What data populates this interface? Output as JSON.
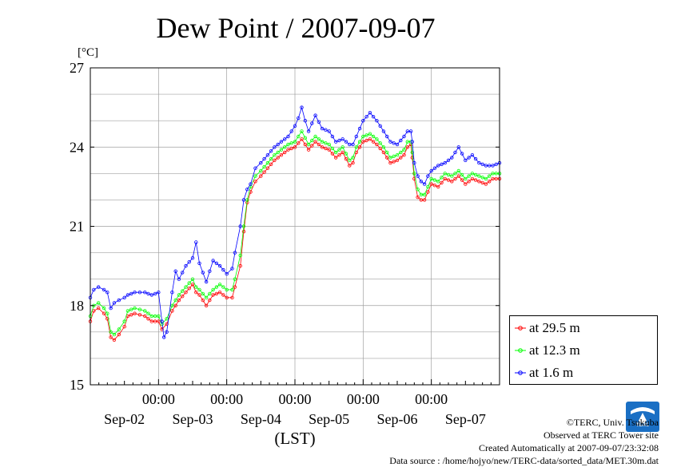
{
  "title": "Dew Point / 2007-09-07",
  "chart_data": {
    "type": "line",
    "title": "Dew Point / 2007-09-07",
    "ylabel": "[°C]",
    "xlabel": "(LST)",
    "ylim": [
      15,
      27
    ],
    "yticks": [
      "15",
      "18",
      "21",
      "24",
      "27"
    ],
    "xlim": [
      0,
      6
    ],
    "x_time_labels": [
      "00:00",
      "00:00",
      "00:00",
      "00:00",
      "00:00"
    ],
    "x_date_labels": [
      "Sep-02",
      "Sep-03",
      "Sep-04",
      "Sep-05",
      "Sep-06",
      "Sep-07"
    ],
    "grid": true,
    "legend_position": "right, below plot top",
    "series": [
      {
        "name": "at 29.5 m",
        "color": "#ff0000",
        "points": [
          [
            0,
            17.4
          ],
          [
            0.05,
            17.8
          ],
          [
            0.12,
            17.9
          ],
          [
            0.2,
            17.7
          ],
          [
            0.25,
            17.5
          ],
          [
            0.3,
            16.8
          ],
          [
            0.35,
            16.7
          ],
          [
            0.42,
            16.9
          ],
          [
            0.5,
            17.2
          ],
          [
            0.55,
            17.6
          ],
          [
            0.65,
            17.7
          ],
          [
            0.8,
            17.6
          ],
          [
            0.9,
            17.4
          ],
          [
            1.0,
            17.4
          ],
          [
            1.05,
            17.1
          ],
          [
            1.12,
            17.3
          ],
          [
            1.2,
            17.8
          ],
          [
            1.3,
            18.2
          ],
          [
            1.4,
            18.5
          ],
          [
            1.5,
            18.8
          ],
          [
            1.55,
            18.5
          ],
          [
            1.6,
            18.4
          ],
          [
            1.7,
            18.0
          ],
          [
            1.8,
            18.4
          ],
          [
            1.9,
            18.5
          ],
          [
            2.0,
            18.3
          ],
          [
            2.08,
            18.3
          ],
          [
            2.12,
            18.7
          ],
          [
            2.2,
            19.5
          ],
          [
            2.25,
            20.8
          ],
          [
            2.3,
            21.9
          ],
          [
            2.35,
            22.3
          ],
          [
            2.42,
            22.7
          ],
          [
            2.5,
            22.9
          ],
          [
            2.6,
            23.2
          ],
          [
            2.7,
            23.5
          ],
          [
            2.8,
            23.7
          ],
          [
            2.9,
            23.9
          ],
          [
            3.0,
            24.0
          ],
          [
            3.1,
            24.3
          ],
          [
            3.2,
            23.9
          ],
          [
            3.3,
            24.2
          ],
          [
            3.4,
            24.0
          ],
          [
            3.5,
            23.9
          ],
          [
            3.6,
            23.6
          ],
          [
            3.7,
            23.8
          ],
          [
            3.8,
            23.3
          ],
          [
            3.85,
            23.4
          ],
          [
            3.9,
            23.8
          ],
          [
            4.0,
            24.2
          ],
          [
            4.1,
            24.3
          ],
          [
            4.2,
            24.1
          ],
          [
            4.3,
            23.8
          ],
          [
            4.4,
            23.4
          ],
          [
            4.5,
            23.5
          ],
          [
            4.6,
            23.7
          ],
          [
            4.65,
            24.0
          ],
          [
            4.7,
            24.1
          ],
          [
            4.72,
            23.6
          ],
          [
            4.75,
            22.8
          ],
          [
            4.8,
            22.1
          ],
          [
            4.85,
            22.0
          ],
          [
            4.9,
            22.0
          ],
          [
            4.95,
            22.3
          ],
          [
            5.0,
            22.6
          ],
          [
            5.1,
            22.5
          ],
          [
            5.2,
            22.8
          ],
          [
            5.3,
            22.7
          ],
          [
            5.4,
            22.9
          ],
          [
            5.5,
            22.6
          ],
          [
            5.6,
            22.8
          ],
          [
            5.7,
            22.7
          ],
          [
            5.8,
            22.6
          ],
          [
            5.9,
            22.8
          ],
          [
            6.0,
            22.8
          ]
        ]
      },
      {
        "name": "at 12.3 m",
        "color": "#00ff00",
        "points": [
          [
            0,
            17.6
          ],
          [
            0.05,
            18.0
          ],
          [
            0.12,
            18.1
          ],
          [
            0.2,
            17.9
          ],
          [
            0.25,
            17.7
          ],
          [
            0.3,
            17.0
          ],
          [
            0.35,
            16.9
          ],
          [
            0.42,
            17.1
          ],
          [
            0.5,
            17.4
          ],
          [
            0.55,
            17.8
          ],
          [
            0.65,
            17.9
          ],
          [
            0.8,
            17.8
          ],
          [
            0.9,
            17.6
          ],
          [
            1.0,
            17.6
          ],
          [
            1.05,
            17.3
          ],
          [
            1.12,
            17.5
          ],
          [
            1.2,
            18.0
          ],
          [
            1.3,
            18.4
          ],
          [
            1.4,
            18.7
          ],
          [
            1.5,
            19.0
          ],
          [
            1.55,
            18.7
          ],
          [
            1.6,
            18.6
          ],
          [
            1.7,
            18.3
          ],
          [
            1.8,
            18.6
          ],
          [
            1.9,
            18.8
          ],
          [
            2.0,
            18.6
          ],
          [
            2.08,
            18.6
          ],
          [
            2.12,
            19.0
          ],
          [
            2.2,
            19.9
          ],
          [
            2.25,
            21.0
          ],
          [
            2.3,
            22.0
          ],
          [
            2.35,
            22.5
          ],
          [
            2.42,
            22.9
          ],
          [
            2.5,
            23.1
          ],
          [
            2.6,
            23.4
          ],
          [
            2.7,
            23.7
          ],
          [
            2.8,
            23.9
          ],
          [
            2.9,
            24.1
          ],
          [
            3.0,
            24.2
          ],
          [
            3.1,
            24.6
          ],
          [
            3.2,
            24.1
          ],
          [
            3.3,
            24.4
          ],
          [
            3.4,
            24.2
          ],
          [
            3.5,
            24.1
          ],
          [
            3.6,
            23.8
          ],
          [
            3.7,
            24.0
          ],
          [
            3.8,
            23.5
          ],
          [
            3.85,
            23.6
          ],
          [
            3.9,
            24.0
          ],
          [
            4.0,
            24.4
          ],
          [
            4.1,
            24.5
          ],
          [
            4.2,
            24.3
          ],
          [
            4.3,
            24.0
          ],
          [
            4.4,
            23.6
          ],
          [
            4.5,
            23.7
          ],
          [
            4.6,
            23.9
          ],
          [
            4.65,
            24.2
          ],
          [
            4.7,
            24.2
          ],
          [
            4.72,
            23.8
          ],
          [
            4.75,
            23.0
          ],
          [
            4.8,
            22.4
          ],
          [
            4.85,
            22.2
          ],
          [
            4.9,
            22.2
          ],
          [
            4.95,
            22.5
          ],
          [
            5.0,
            22.8
          ],
          [
            5.1,
            22.7
          ],
          [
            5.2,
            23.0
          ],
          [
            5.3,
            22.9
          ],
          [
            5.4,
            23.1
          ],
          [
            5.5,
            22.8
          ],
          [
            5.6,
            23.0
          ],
          [
            5.7,
            22.9
          ],
          [
            5.8,
            22.8
          ],
          [
            5.9,
            23.0
          ],
          [
            6.0,
            23.0
          ]
        ]
      },
      {
        "name": "at 1.6 m",
        "color": "#0000ff",
        "points": [
          [
            0,
            18.3
          ],
          [
            0.05,
            18.6
          ],
          [
            0.12,
            18.7
          ],
          [
            0.2,
            18.6
          ],
          [
            0.25,
            18.5
          ],
          [
            0.3,
            17.9
          ],
          [
            0.35,
            18.1
          ],
          [
            0.42,
            18.2
          ],
          [
            0.5,
            18.3
          ],
          [
            0.55,
            18.4
          ],
          [
            0.65,
            18.5
          ],
          [
            0.8,
            18.5
          ],
          [
            0.9,
            18.4
          ],
          [
            1.0,
            18.5
          ],
          [
            1.05,
            17.4
          ],
          [
            1.08,
            16.8
          ],
          [
            1.12,
            17.0
          ],
          [
            1.2,
            18.5
          ],
          [
            1.25,
            19.3
          ],
          [
            1.3,
            19.0
          ],
          [
            1.4,
            19.5
          ],
          [
            1.5,
            19.8
          ],
          [
            1.55,
            20.4
          ],
          [
            1.6,
            19.6
          ],
          [
            1.7,
            18.9
          ],
          [
            1.8,
            19.7
          ],
          [
            1.9,
            19.5
          ],
          [
            2.0,
            19.2
          ],
          [
            2.08,
            19.4
          ],
          [
            2.12,
            20.0
          ],
          [
            2.2,
            21.0
          ],
          [
            2.25,
            22.0
          ],
          [
            2.3,
            22.4
          ],
          [
            2.35,
            22.6
          ],
          [
            2.42,
            23.2
          ],
          [
            2.5,
            23.4
          ],
          [
            2.6,
            23.7
          ],
          [
            2.7,
            24.0
          ],
          [
            2.8,
            24.2
          ],
          [
            2.9,
            24.4
          ],
          [
            3.0,
            24.8
          ],
          [
            3.05,
            25.1
          ],
          [
            3.1,
            25.5
          ],
          [
            3.15,
            25.0
          ],
          [
            3.2,
            24.6
          ],
          [
            3.3,
            25.2
          ],
          [
            3.4,
            24.7
          ],
          [
            3.5,
            24.6
          ],
          [
            3.6,
            24.2
          ],
          [
            3.7,
            24.3
          ],
          [
            3.8,
            24.1
          ],
          [
            3.85,
            24.1
          ],
          [
            3.9,
            24.4
          ],
          [
            4.0,
            25.0
          ],
          [
            4.1,
            25.3
          ],
          [
            4.2,
            25.0
          ],
          [
            4.3,
            24.6
          ],
          [
            4.4,
            24.2
          ],
          [
            4.5,
            24.1
          ],
          [
            4.6,
            24.4
          ],
          [
            4.65,
            24.6
          ],
          [
            4.7,
            24.6
          ],
          [
            4.72,
            24.2
          ],
          [
            4.75,
            23.4
          ],
          [
            4.8,
            22.9
          ],
          [
            4.85,
            22.7
          ],
          [
            4.9,
            22.6
          ],
          [
            4.95,
            22.9
          ],
          [
            5.0,
            23.1
          ],
          [
            5.1,
            23.3
          ],
          [
            5.2,
            23.4
          ],
          [
            5.3,
            23.6
          ],
          [
            5.4,
            24.0
          ],
          [
            5.5,
            23.5
          ],
          [
            5.6,
            23.7
          ],
          [
            5.7,
            23.4
          ],
          [
            5.8,
            23.3
          ],
          [
            5.9,
            23.3
          ],
          [
            6.0,
            23.4
          ]
        ]
      }
    ]
  },
  "legend": [
    {
      "label": "at 29.5 m",
      "color": "#ff0000"
    },
    {
      "label": "at 12.3 m",
      "color": "#00ff00"
    },
    {
      "label": "at 1.6 m",
      "color": "#0000ff"
    }
  ],
  "footer": {
    "copyright": "©TERC, Univ. Tsukuba",
    "site": "Observed at TERC Tower site",
    "created": "Created Automatically at 2007-09-07/23:32:08",
    "source": "Data source : /home/hojyo/new/TERC-data/sorted_data/MET.30m.dat"
  },
  "logo": {
    "text": "TERC",
    "color": "#1a6fc4"
  }
}
